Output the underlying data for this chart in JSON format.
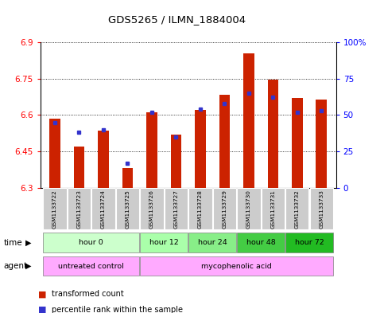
{
  "title": "GDS5265 / ILMN_1884004",
  "samples": [
    "GSM1133722",
    "GSM1133723",
    "GSM1133724",
    "GSM1133725",
    "GSM1133726",
    "GSM1133727",
    "GSM1133728",
    "GSM1133729",
    "GSM1133730",
    "GSM1133731",
    "GSM1133732",
    "GSM1133733"
  ],
  "transformed_count": [
    6.585,
    6.47,
    6.535,
    6.38,
    6.61,
    6.52,
    6.62,
    6.685,
    6.855,
    6.745,
    6.67,
    6.665
  ],
  "percentile_rank": [
    45,
    38,
    40,
    17,
    52,
    35,
    54,
    58,
    65,
    62,
    52,
    53
  ],
  "ymin": 6.3,
  "ymax": 6.9,
  "y_ticks": [
    6.3,
    6.45,
    6.6,
    6.75,
    6.9
  ],
  "right_ticks": [
    0,
    25,
    50,
    75,
    100
  ],
  "bar_color": "#cc2200",
  "marker_color": "#3333cc",
  "time_groups": [
    {
      "label": "hour 0",
      "start": 0,
      "end": 3,
      "color": "#ccffcc"
    },
    {
      "label": "hour 12",
      "start": 4,
      "end": 5,
      "color": "#aaffaa"
    },
    {
      "label": "hour 24",
      "start": 6,
      "end": 7,
      "color": "#88ee88"
    },
    {
      "label": "hour 48",
      "start": 8,
      "end": 9,
      "color": "#44cc44"
    },
    {
      "label": "hour 72",
      "start": 10,
      "end": 11,
      "color": "#22bb22"
    }
  ],
  "agent_groups": [
    {
      "label": "untreated control",
      "start": 0,
      "end": 3,
      "color": "#ffaaff"
    },
    {
      "label": "mycophenolic acid",
      "start": 4,
      "end": 11,
      "color": "#ffaaff"
    }
  ],
  "legend_tc_color": "#cc2200",
  "legend_pr_color": "#3333cc",
  "background_color": "#ffffff",
  "plot_bg_color": "#ffffff",
  "sample_row_color": "#cccccc",
  "bar_width": 0.45
}
